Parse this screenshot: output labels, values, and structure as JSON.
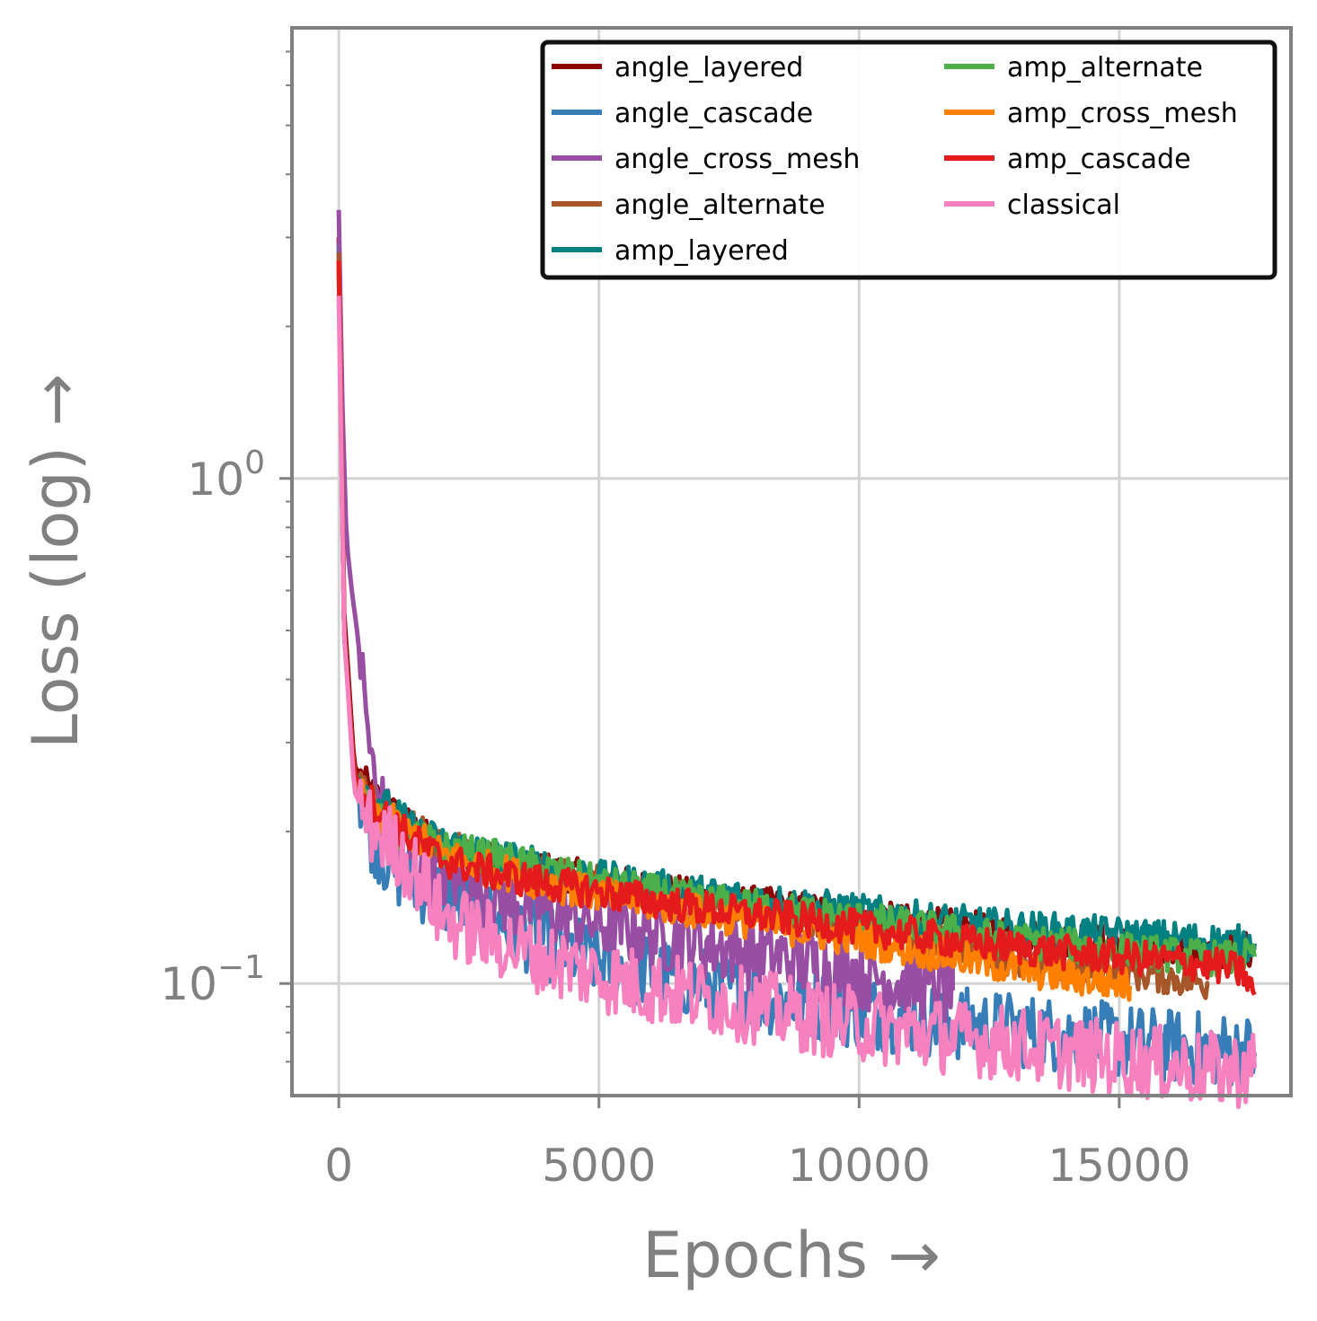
{
  "chart_data": {
    "type": "line",
    "xlabel": "Epochs →",
    "ylabel": "Loss (log) →",
    "xlim": [
      -900,
      18300
    ],
    "ylim": [
      0.06,
      7.8
    ],
    "yscale": "log",
    "grid": true,
    "legend_position": "top-right",
    "legend_columns": 2,
    "x_ticks": [
      0,
      5000,
      10000,
      15000
    ],
    "x_tick_labels": [
      "0",
      "5000",
      "10000",
      "15000"
    ],
    "y_ticks": [
      0.1,
      1
    ],
    "y_tick_labels": [
      {
        "base": "10",
        "exp": "−1"
      },
      {
        "base": "10",
        "exp": "0"
      }
    ],
    "series": [
      {
        "name": "angle_layered",
        "color": "#8b0000",
        "values": [
          [
            0,
            3.0
          ],
          [
            100,
            0.55
          ],
          [
            300,
            0.27
          ],
          [
            600,
            0.24
          ],
          [
            1000,
            0.22
          ],
          [
            1500,
            0.2
          ],
          [
            2000,
            0.185
          ],
          [
            3000,
            0.178
          ],
          [
            4000,
            0.168
          ],
          [
            5000,
            0.16
          ],
          [
            6000,
            0.154
          ],
          [
            7000,
            0.148
          ],
          [
            8000,
            0.144
          ],
          [
            9000,
            0.14
          ],
          [
            10000,
            0.136
          ],
          [
            11000,
            0.132
          ],
          [
            12000,
            0.129
          ],
          [
            13000,
            0.126
          ],
          [
            14000,
            0.123
          ],
          [
            15000,
            0.12
          ],
          [
            16000,
            0.117
          ],
          [
            17000,
            0.115
          ],
          [
            17600,
            0.118
          ]
        ]
      },
      {
        "name": "angle_cascade",
        "color": "#377eb8",
        "values": [
          [
            0,
            2.9
          ],
          [
            100,
            0.5
          ],
          [
            300,
            0.26
          ],
          [
            600,
            0.2
          ],
          [
            1000,
            0.17
          ],
          [
            1500,
            0.158
          ],
          [
            2000,
            0.148
          ],
          [
            3000,
            0.133
          ],
          [
            4000,
            0.12
          ],
          [
            5000,
            0.111
          ],
          [
            6000,
            0.105
          ],
          [
            7000,
            0.1
          ],
          [
            8000,
            0.095
          ],
          [
            9000,
            0.091
          ],
          [
            10000,
            0.088
          ],
          [
            11000,
            0.086
          ],
          [
            12000,
            0.083
          ],
          [
            13000,
            0.081
          ],
          [
            14000,
            0.079
          ],
          [
            15000,
            0.077
          ],
          [
            16000,
            0.075
          ],
          [
            17000,
            0.074
          ],
          [
            17600,
            0.073
          ]
        ]
      },
      {
        "name": "angle_cross_mesh",
        "color": "#984ea3",
        "values": [
          [
            0,
            3.4
          ],
          [
            60,
            1.5
          ],
          [
            150,
            0.75
          ],
          [
            250,
            0.6
          ],
          [
            350,
            0.5
          ],
          [
            500,
            0.36
          ],
          [
            700,
            0.24
          ],
          [
            1000,
            0.2
          ],
          [
            1500,
            0.175
          ],
          [
            2000,
            0.165
          ],
          [
            3000,
            0.15
          ],
          [
            4000,
            0.14
          ],
          [
            5000,
            0.132
          ],
          [
            6000,
            0.126
          ],
          [
            7000,
            0.12
          ],
          [
            8000,
            0.115
          ],
          [
            9000,
            0.11
          ],
          [
            10000,
            0.105
          ],
          [
            11000,
            0.1
          ],
          [
            11800,
            0.097
          ]
        ]
      },
      {
        "name": "angle_alternate",
        "color": "#a65628",
        "values": [
          [
            0,
            2.8
          ],
          [
            100,
            0.5
          ],
          [
            300,
            0.25
          ],
          [
            600,
            0.23
          ],
          [
            1000,
            0.22
          ],
          [
            1500,
            0.2
          ],
          [
            2000,
            0.186
          ],
          [
            3000,
            0.175
          ],
          [
            4000,
            0.166
          ],
          [
            5000,
            0.158
          ],
          [
            6000,
            0.152
          ],
          [
            7000,
            0.146
          ],
          [
            8000,
            0.14
          ],
          [
            9000,
            0.135
          ],
          [
            10000,
            0.13
          ],
          [
            11000,
            0.124
          ],
          [
            12000,
            0.118
          ],
          [
            13000,
            0.112
          ],
          [
            14000,
            0.108
          ],
          [
            15000,
            0.106
          ],
          [
            16000,
            0.103
          ],
          [
            16700,
            0.1
          ]
        ]
      },
      {
        "name": "amp_layered",
        "color": "#008080",
        "values": [
          [
            0,
            2.6
          ],
          [
            100,
            0.5
          ],
          [
            300,
            0.26
          ],
          [
            600,
            0.24
          ],
          [
            1000,
            0.22
          ],
          [
            1500,
            0.2
          ],
          [
            2000,
            0.19
          ],
          [
            3000,
            0.18
          ],
          [
            4000,
            0.17
          ],
          [
            5000,
            0.162
          ],
          [
            6000,
            0.156
          ],
          [
            7000,
            0.151
          ],
          [
            8000,
            0.147
          ],
          [
            9000,
            0.143
          ],
          [
            10000,
            0.139
          ],
          [
            11000,
            0.135
          ],
          [
            12000,
            0.132
          ],
          [
            13000,
            0.129
          ],
          [
            14000,
            0.127
          ],
          [
            15000,
            0.125
          ],
          [
            16000,
            0.123
          ],
          [
            17000,
            0.121
          ],
          [
            17600,
            0.12
          ]
        ]
      },
      {
        "name": "amp_alternate",
        "color": "#4daf4a",
        "values": [
          [
            0,
            2.7
          ],
          [
            100,
            0.5
          ],
          [
            300,
            0.26
          ],
          [
            600,
            0.22
          ],
          [
            1000,
            0.2
          ],
          [
            1500,
            0.195
          ],
          [
            2000,
            0.185
          ],
          [
            3000,
            0.178
          ],
          [
            4000,
            0.168
          ],
          [
            5000,
            0.158
          ],
          [
            6000,
            0.152
          ],
          [
            7000,
            0.146
          ],
          [
            8000,
            0.142
          ],
          [
            9000,
            0.138
          ],
          [
            10000,
            0.134
          ],
          [
            11000,
            0.13
          ],
          [
            12000,
            0.126
          ],
          [
            13000,
            0.122
          ],
          [
            14000,
            0.119
          ],
          [
            15000,
            0.117
          ],
          [
            16000,
            0.114
          ],
          [
            17000,
            0.112
          ],
          [
            17600,
            0.113
          ]
        ]
      },
      {
        "name": "amp_cross_mesh",
        "color": "#ff7f00",
        "values": [
          [
            0,
            2.7
          ],
          [
            100,
            0.5
          ],
          [
            300,
            0.25
          ],
          [
            600,
            0.22
          ],
          [
            1000,
            0.21
          ],
          [
            1500,
            0.195
          ],
          [
            2000,
            0.18
          ],
          [
            3000,
            0.168
          ],
          [
            4000,
            0.158
          ],
          [
            5000,
            0.15
          ],
          [
            6000,
            0.144
          ],
          [
            7000,
            0.138
          ],
          [
            8000,
            0.132
          ],
          [
            9000,
            0.127
          ],
          [
            10000,
            0.122
          ],
          [
            11000,
            0.117
          ],
          [
            12000,
            0.112
          ],
          [
            13000,
            0.107
          ],
          [
            14000,
            0.103
          ],
          [
            15000,
            0.1
          ],
          [
            15200,
            0.099
          ]
        ]
      },
      {
        "name": "amp_cascade",
        "color": "#e41a1c",
        "values": [
          [
            0,
            2.7
          ],
          [
            100,
            0.5
          ],
          [
            300,
            0.26
          ],
          [
            600,
            0.23
          ],
          [
            1000,
            0.21
          ],
          [
            1500,
            0.19
          ],
          [
            2000,
            0.176
          ],
          [
            3000,
            0.165
          ],
          [
            4000,
            0.158
          ],
          [
            5000,
            0.152
          ],
          [
            6000,
            0.146
          ],
          [
            7000,
            0.141
          ],
          [
            8000,
            0.137
          ],
          [
            9000,
            0.133
          ],
          [
            10000,
            0.129
          ],
          [
            11000,
            0.125
          ],
          [
            12000,
            0.121
          ],
          [
            13000,
            0.118
          ],
          [
            14000,
            0.115
          ],
          [
            15000,
            0.113
          ],
          [
            16000,
            0.111
          ],
          [
            17000,
            0.108
          ],
          [
            17400,
            0.105
          ],
          [
            17600,
            0.095
          ]
        ]
      },
      {
        "name": "classical",
        "color": "#f781bf",
        "values": [
          [
            0,
            2.3
          ],
          [
            100,
            0.5
          ],
          [
            300,
            0.24
          ],
          [
            600,
            0.205
          ],
          [
            1000,
            0.19
          ],
          [
            1500,
            0.165
          ],
          [
            2000,
            0.135
          ],
          [
            3000,
            0.122
          ],
          [
            4000,
            0.112
          ],
          [
            5000,
            0.104
          ],
          [
            6000,
            0.098
          ],
          [
            7000,
            0.094
          ],
          [
            8000,
            0.09
          ],
          [
            9000,
            0.086
          ],
          [
            10000,
            0.083
          ],
          [
            11000,
            0.08
          ],
          [
            12000,
            0.078
          ],
          [
            13000,
            0.076
          ],
          [
            14000,
            0.073
          ],
          [
            15000,
            0.071
          ],
          [
            16000,
            0.069
          ],
          [
            17000,
            0.067
          ],
          [
            17600,
            0.068
          ]
        ]
      }
    ]
  }
}
